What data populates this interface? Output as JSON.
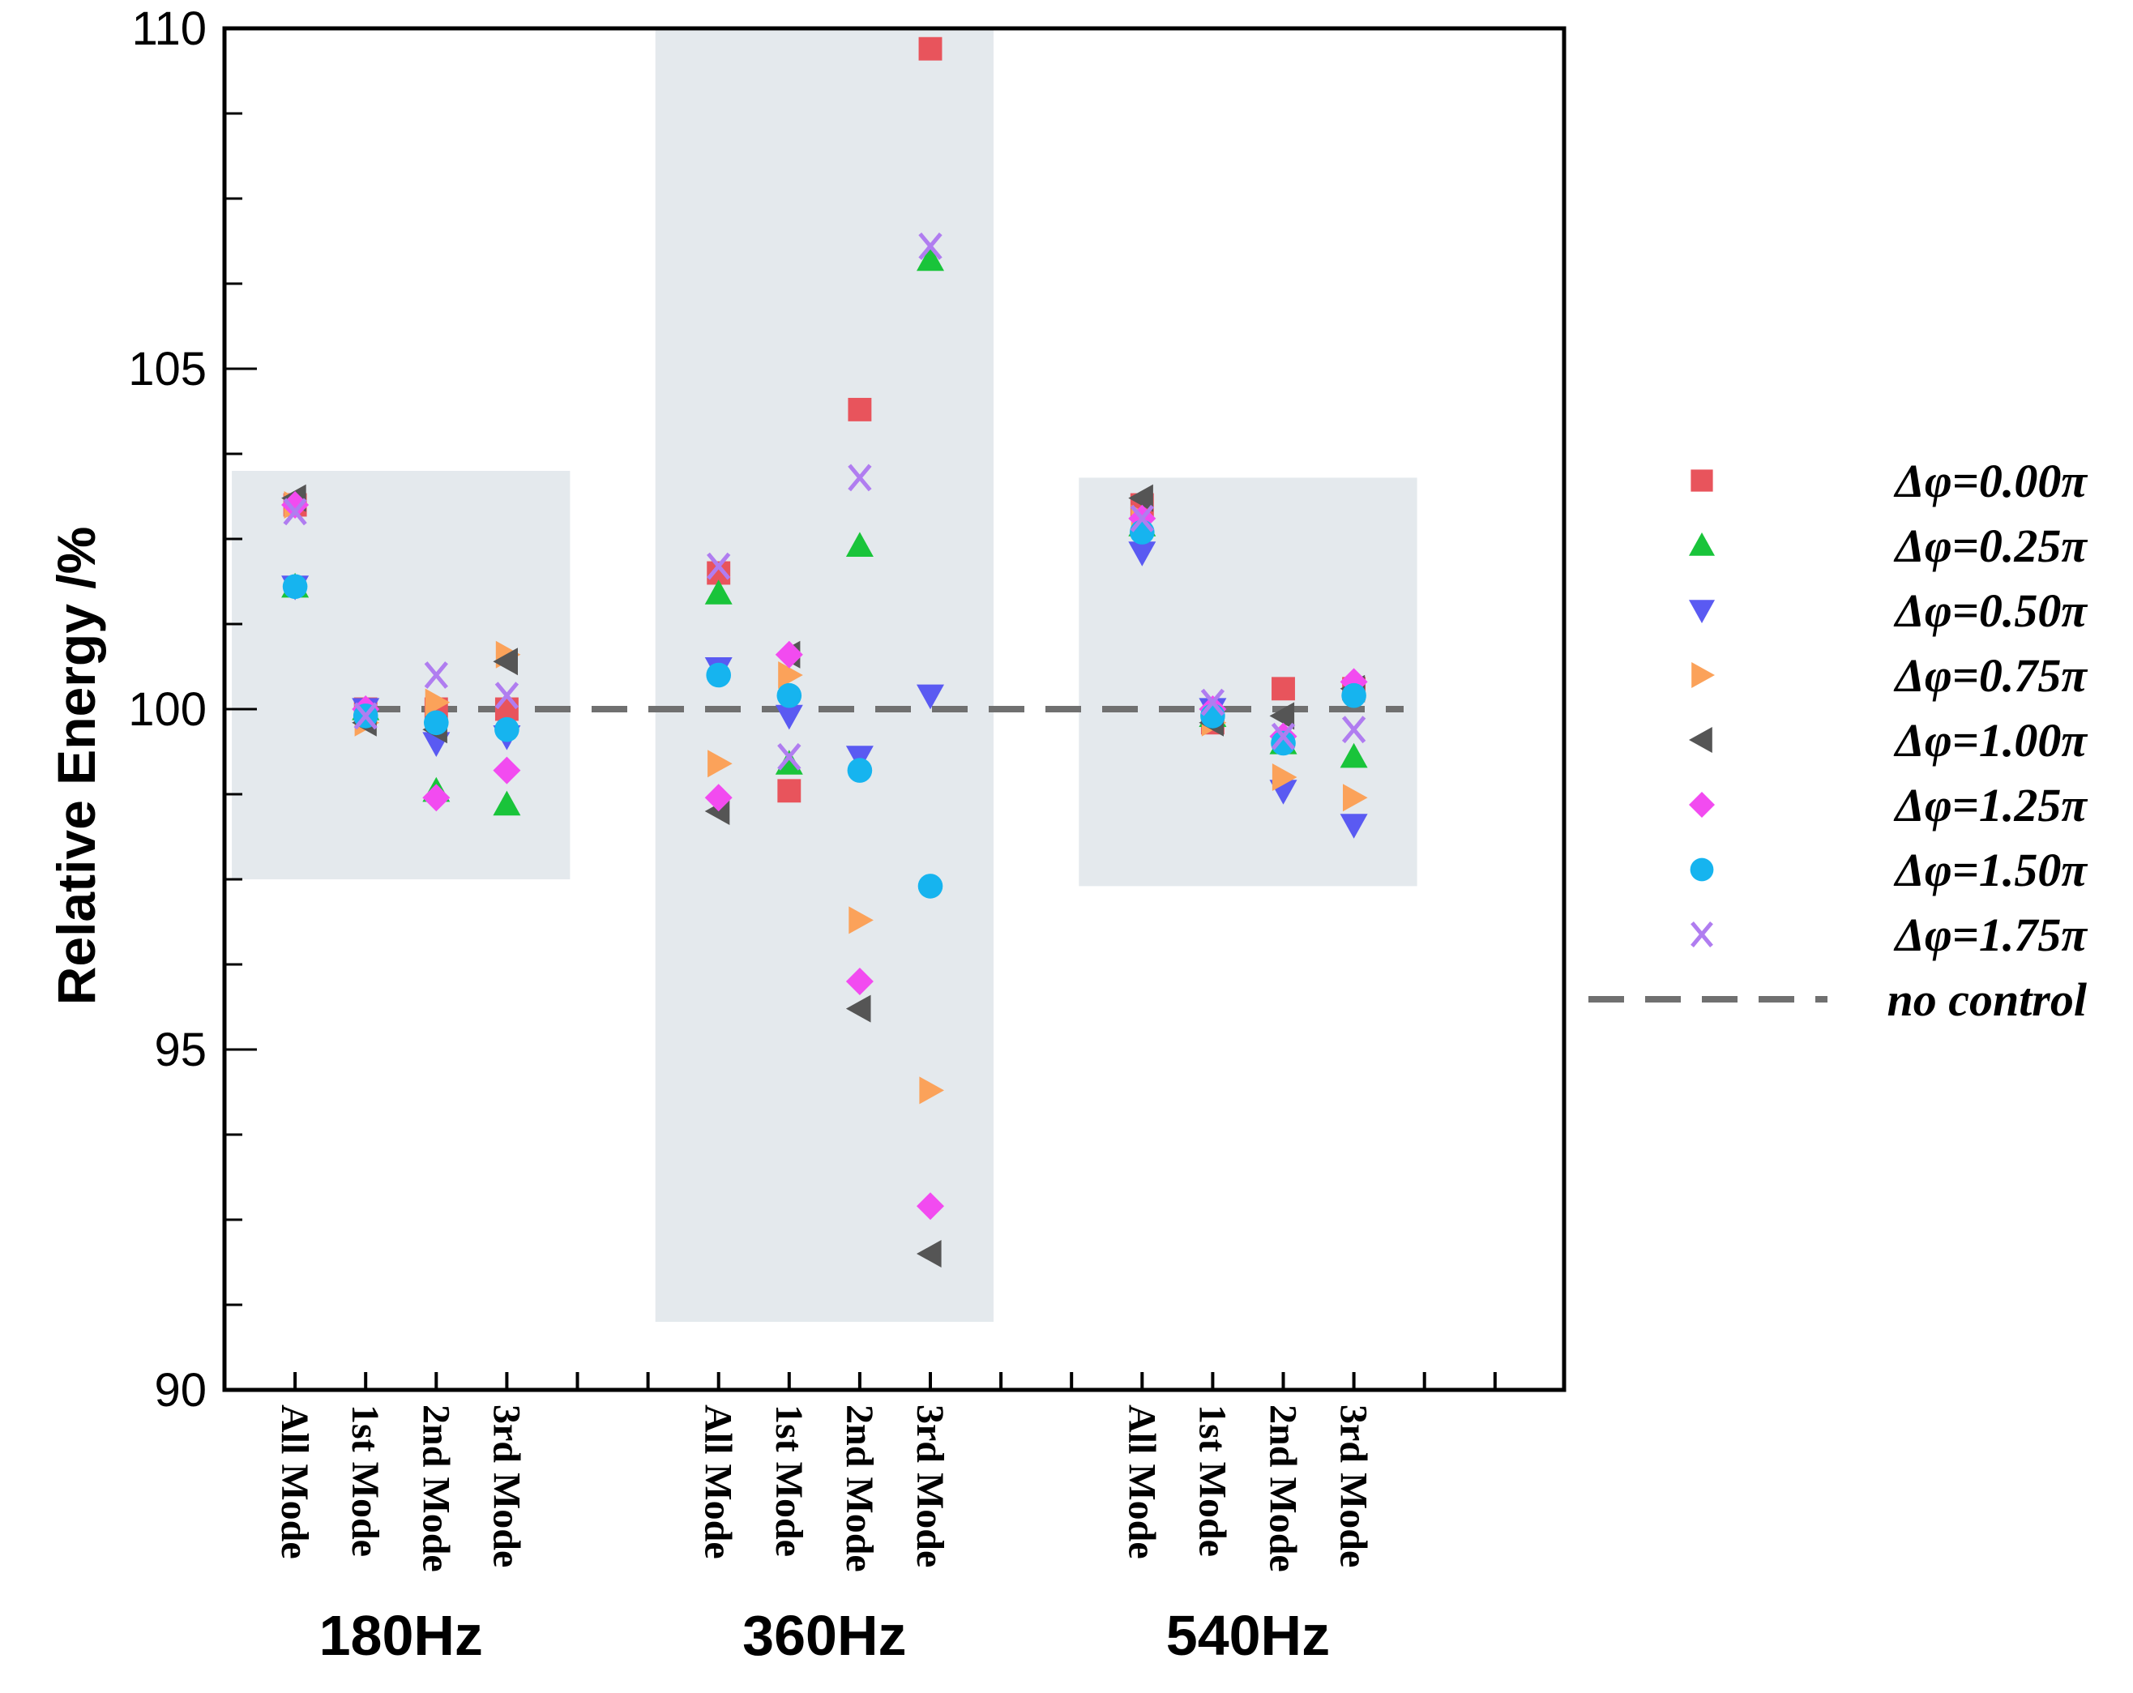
{
  "chart_data": {
    "type": "scatter",
    "title": "",
    "xlabel": "",
    "ylabel": "Relative Energy /%",
    "ylim": [
      90,
      110
    ],
    "yticks": [
      "90",
      "95",
      "100",
      "105",
      "110"
    ],
    "categories": [
      "All Mode",
      "1st Mode",
      "2nd Mode",
      "3rd Mode"
    ],
    "groups": [
      "180Hz",
      "360Hz",
      "540Hz"
    ],
    "shaded_ranges": [
      [
        97.5,
        103.5
      ],
      [
        91.0,
        110.0
      ],
      [
        97.4,
        103.4
      ]
    ],
    "reference_line": {
      "name": "no control",
      "value": 100
    },
    "series": [
      {
        "name": "Δφ=0.00π",
        "color": "#e8545c",
        "marker": "square",
        "values": [
          [
            103.0,
            100.0,
            100.0,
            100.0
          ],
          [
            102.0,
            98.8,
            104.4,
            109.7
          ],
          [
            103.0,
            99.8,
            100.3,
            100.3
          ]
        ]
      },
      {
        "name": "Δφ=0.25π",
        "color": "#19c43a",
        "marker": "triangle-up",
        "values": [
          [
            101.8,
            100.0,
            98.8,
            98.6
          ],
          [
            101.7,
            99.2,
            102.4,
            106.6
          ],
          [
            102.7,
            99.9,
            99.5,
            99.3
          ]
        ]
      },
      {
        "name": "Δφ=0.50π",
        "color": "#5a5af2",
        "marker": "triangle-down",
        "values": [
          [
            101.8,
            100.0,
            99.5,
            99.6
          ],
          [
            100.6,
            99.9,
            99.3,
            100.2
          ],
          [
            102.3,
            100.0,
            98.8,
            98.3
          ]
        ]
      },
      {
        "name": "Δφ=0.75π",
        "color": "#fba25a",
        "marker": "triangle-right",
        "values": [
          [
            103.0,
            99.8,
            100.1,
            100.8
          ],
          [
            99.2,
            100.5,
            96.9,
            94.4
          ],
          [
            102.8,
            99.8,
            99.0,
            98.7
          ]
        ]
      },
      {
        "name": "Δφ=1.00π",
        "color": "#555555",
        "marker": "triangle-left",
        "values": [
          [
            103.1,
            99.8,
            99.7,
            100.7
          ],
          [
            98.5,
            100.8,
            95.6,
            92.0
          ],
          [
            103.1,
            99.8,
            99.9,
            100.3
          ]
        ]
      },
      {
        "name": "Δφ=1.25π",
        "color": "#f24bf0",
        "marker": "diamond",
        "values": [
          [
            103.0,
            100.0,
            98.7,
            99.1
          ],
          [
            98.7,
            100.8,
            96.0,
            92.7
          ],
          [
            102.8,
            100.0,
            99.6,
            100.4
          ]
        ]
      },
      {
        "name": "Δφ=1.50π",
        "color": "#16b4ef",
        "marker": "circle",
        "values": [
          [
            101.8,
            99.9,
            99.8,
            99.7
          ],
          [
            100.5,
            100.2,
            99.1,
            97.4
          ],
          [
            102.6,
            99.9,
            99.5,
            100.2
          ]
        ]
      },
      {
        "name": "Δφ=1.75π",
        "color": "#b07df0",
        "marker": "x",
        "values": [
          [
            102.9,
            99.9,
            100.5,
            100.2
          ],
          [
            102.1,
            99.3,
            103.4,
            106.8
          ],
          [
            102.8,
            100.1,
            99.6,
            99.7
          ]
        ]
      }
    ],
    "legend": {
      "position": "right",
      "items": [
        "Δφ=0.00π",
        "Δφ=0.25π",
        "Δφ=0.50π",
        "Δφ=0.75π",
        "Δφ=1.00π",
        "Δφ=1.25π",
        "Δφ=1.50π",
        "Δφ=1.75π",
        "no control"
      ]
    },
    "grid": false
  },
  "colors": {
    "shade": "#e4e9ed",
    "reference_line": "#707070",
    "axis": "#000000"
  }
}
